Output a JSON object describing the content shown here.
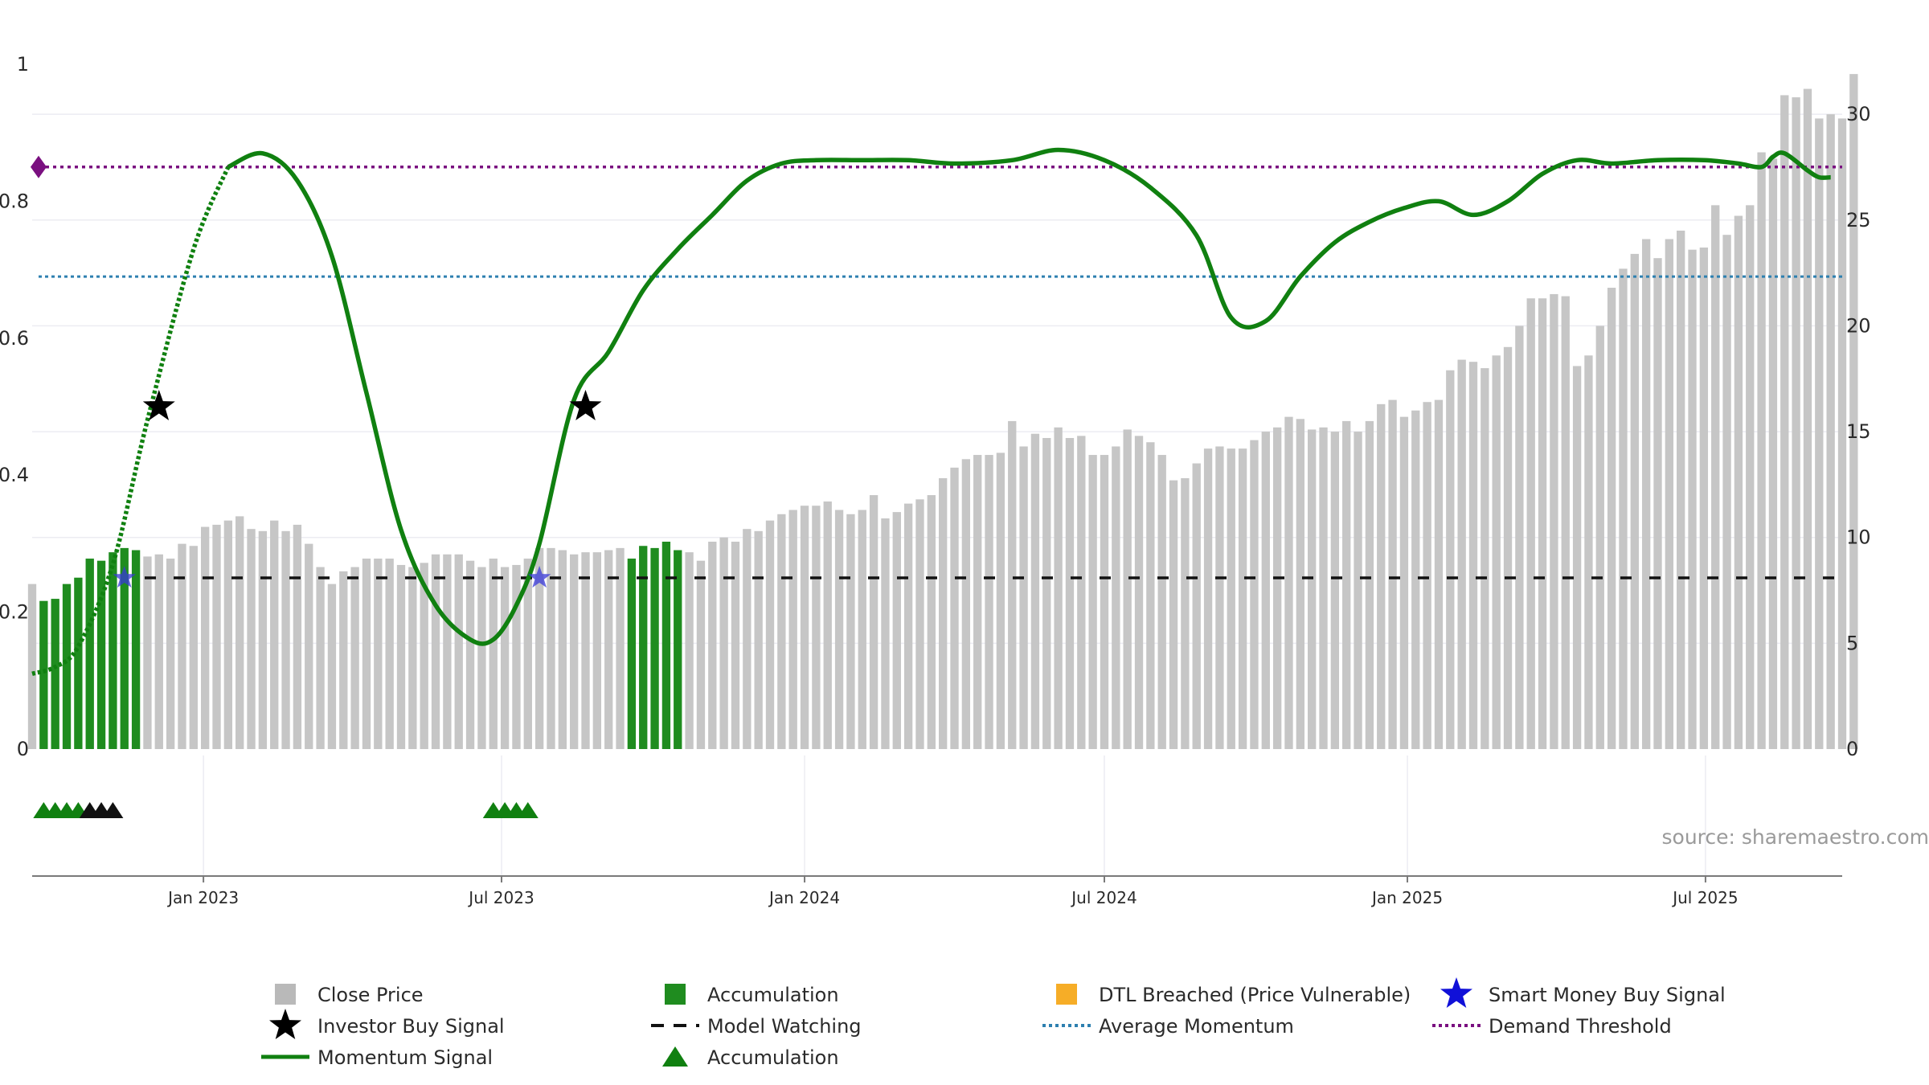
{
  "chart_data": {
    "type": "bar",
    "title": "",
    "source_note": "source: sharemaestro.com",
    "left_axis": {
      "ticks": [
        0,
        0.2,
        0.4,
        0.6,
        0.8,
        1
      ],
      "labels": [
        "0",
        "0.2",
        "0.4",
        "0.6",
        "0.8",
        "1"
      ],
      "range": [
        0,
        1
      ]
    },
    "right_axis": {
      "ticks": [
        0,
        5,
        10,
        15,
        20,
        25,
        30
      ],
      "labels": [
        "0",
        "5",
        "10",
        "15",
        "20",
        "25",
        "30"
      ],
      "range": [
        0,
        33.5
      ]
    },
    "x_axis": {
      "range": [
        "2022-09-19",
        "2025-09-22"
      ],
      "ticks": [
        {
          "date": "2023-01-01",
          "label": "Jan 2023"
        },
        {
          "date": "2023-07-01",
          "label": "Jul 2023"
        },
        {
          "date": "2024-01-01",
          "label": "Jan 2024"
        },
        {
          "date": "2024-07-01",
          "label": "Jul 2024"
        },
        {
          "date": "2025-01-01",
          "label": "Jan 2025"
        },
        {
          "date": "2025-07-01",
          "label": "Jul 2025"
        }
      ]
    },
    "bars": {
      "start_date": "2022-09-19",
      "interval_days": 7,
      "close_price": [
        7.8,
        7.0,
        7.1,
        7.8,
        8.1,
        9.0,
        8.9,
        9.3,
        9.5,
        9.4,
        9.1,
        9.2,
        9.0,
        9.7,
        9.6,
        10.5,
        10.6,
        10.8,
        11.0,
        10.4,
        10.3,
        10.8,
        10.3,
        10.6,
        9.7,
        8.6,
        7.8,
        8.4,
        8.6,
        9.0,
        9.0,
        9.0,
        8.7,
        8.6,
        8.8,
        9.2,
        9.2,
        9.2,
        8.9,
        8.6,
        9.0,
        8.6,
        8.7,
        9.0,
        9.5,
        9.5,
        9.4,
        9.2,
        9.3,
        9.3,
        9.4,
        9.5,
        9.0,
        9.6,
        9.5,
        9.8,
        9.4,
        9.3,
        8.9,
        9.8,
        10.0,
        9.8,
        10.4,
        10.3,
        10.8,
        11.1,
        11.3,
        11.5,
        11.5,
        11.7,
        11.3,
        11.1,
        11.3,
        12.0,
        10.9,
        11.2,
        11.6,
        11.8,
        12.0,
        12.8,
        13.3,
        13.7,
        13.9,
        13.9,
        14.0,
        15.5,
        14.3,
        14.9,
        14.7,
        15.2,
        14.7,
        14.8,
        13.9,
        13.9,
        14.3,
        15.1,
        14.8,
        14.5,
        13.9,
        12.7,
        12.8,
        13.5,
        14.2,
        14.3,
        14.2,
        14.2,
        14.6,
        15.0,
        15.2,
        15.7,
        15.6,
        15.1,
        15.2,
        15.0,
        15.5,
        15.0,
        15.5,
        16.3,
        16.5,
        15.7,
        16.0,
        16.4,
        16.5,
        17.9,
        18.4,
        18.3,
        18.0,
        18.6,
        19.0,
        20.0,
        21.3,
        21.3,
        21.5,
        21.4,
        18.1,
        18.6,
        20.0,
        21.8,
        22.7,
        23.4,
        24.1,
        23.2,
        24.1,
        24.5,
        23.6,
        23.7,
        25.7,
        24.3,
        25.2,
        25.7,
        28.2,
        27.9,
        30.9,
        30.8,
        31.2,
        29.8,
        30.0,
        29.8,
        31.9
      ],
      "accumulation_index": [
        1,
        2,
        3,
        4,
        5,
        6,
        7,
        8,
        9,
        52,
        53,
        54,
        55,
        56
      ],
      "dtl_breached_from_index": 191,
      "colors": {
        "close_price": "#c6c6c6",
        "accumulation": "#1f8c1f",
        "dtl_breached": "#f9cd82"
      }
    },
    "series": [
      {
        "name": "Momentum Signal",
        "color": "#108010",
        "dashed_start_index": 6,
        "dates": [
          "2022-09-19",
          "2022-10-03",
          "2022-10-17",
          "2022-11-07",
          "2022-11-28",
          "2022-12-26",
          "2023-01-16",
          "2023-02-06",
          "2023-02-27",
          "2023-03-20",
          "2023-04-10",
          "2023-05-01",
          "2023-05-22",
          "2023-06-12",
          "2023-06-26",
          "2023-07-10",
          "2023-07-24",
          "2023-08-14",
          "2023-09-04",
          "2023-09-25",
          "2023-10-16",
          "2023-11-06",
          "2023-11-27",
          "2023-12-18",
          "2024-01-08",
          "2024-02-05",
          "2024-03-04",
          "2024-04-01",
          "2024-05-06",
          "2024-06-03",
          "2024-07-01",
          "2024-07-29",
          "2024-08-26",
          "2024-09-16",
          "2024-10-07",
          "2024-10-28",
          "2024-11-18",
          "2024-12-09",
          "2024-12-30",
          "2025-01-20",
          "2025-02-10",
          "2025-03-03",
          "2025-03-24",
          "2025-04-14",
          "2025-05-05",
          "2025-06-02",
          "2025-06-30",
          "2025-07-21",
          "2025-08-04",
          "2025-08-11",
          "2025-08-18",
          "2025-09-01",
          "2025-09-08",
          "2025-09-15"
        ],
        "values": [
          0.11,
          0.12,
          0.15,
          0.27,
          0.48,
          0.73,
          0.85,
          0.87,
          0.83,
          0.72,
          0.52,
          0.32,
          0.21,
          0.16,
          0.16,
          0.21,
          0.3,
          0.51,
          0.58,
          0.67,
          0.73,
          0.78,
          0.83,
          0.855,
          0.86,
          0.86,
          0.86,
          0.855,
          0.86,
          0.875,
          0.86,
          0.82,
          0.75,
          0.63,
          0.625,
          0.69,
          0.74,
          0.77,
          0.79,
          0.8,
          0.78,
          0.8,
          0.84,
          0.86,
          0.855,
          0.86,
          0.86,
          0.855,
          0.85,
          0.865,
          0.87,
          0.845,
          0.835,
          0.835
        ]
      },
      {
        "name": "Average Momentum",
        "color": "#2e80b0",
        "value": 0.69
      },
      {
        "name": "Demand Threshold",
        "color": "#7a1080",
        "value": 0.85
      },
      {
        "name": "Model Watching",
        "color": "#111111",
        "value": 0.25
      }
    ],
    "markers": {
      "investor_buy": [
        {
          "date": "2022-12-05",
          "value": 0.5
        },
        {
          "date": "2023-08-21",
          "value": 0.5
        }
      ],
      "smart_money_buy": [
        {
          "date": "2022-11-14",
          "value": 0.25
        },
        {
          "date": "2023-07-24",
          "value": 0.25
        }
      ],
      "demand_threshold_marker": {
        "date": "2022-09-19",
        "value": 0.85
      },
      "accumulation_triangles": [
        {
          "date": "2022-09-26",
          "color": "#108010"
        },
        {
          "date": "2022-10-03",
          "color": "#108010"
        },
        {
          "date": "2022-10-10",
          "color": "#108010"
        },
        {
          "date": "2022-10-17",
          "color": "#108010"
        },
        {
          "date": "2022-10-24",
          "color": "#111111"
        },
        {
          "date": "2022-10-31",
          "color": "#111111"
        },
        {
          "date": "2022-11-07",
          "color": "#111111"
        },
        {
          "date": "2023-06-26",
          "color": "#108010"
        },
        {
          "date": "2023-07-03",
          "color": "#108010"
        },
        {
          "date": "2023-07-10",
          "color": "#108010"
        },
        {
          "date": "2023-07-17",
          "color": "#108010"
        }
      ]
    },
    "legend": {
      "position": "bottom",
      "items": [
        {
          "label": "Close Price",
          "symbol": "square",
          "color": "#b9b9b9"
        },
        {
          "label": "Accumulation",
          "symbol": "square",
          "color": "#1f8c1f"
        },
        {
          "label": "DTL Breached (Price Vulnerable)",
          "symbol": "square",
          "color": "#f6ad27"
        },
        {
          "label": "Smart Money Buy Signal",
          "symbol": "star",
          "color": "#1010d8"
        },
        {
          "label": "Investor Buy Signal",
          "symbol": "star",
          "color": "#000000"
        },
        {
          "label": "Model Watching",
          "symbol": "dash",
          "color": "#111111"
        },
        {
          "label": "Average Momentum",
          "symbol": "dotted",
          "color": "#2e80b0"
        },
        {
          "label": "Demand Threshold",
          "symbol": "dotted",
          "color": "#7a1080"
        },
        {
          "label": "Momentum Signal",
          "symbol": "line",
          "color": "#108010"
        },
        {
          "label": "Accumulation",
          "symbol": "triangle",
          "color": "#108010"
        }
      ]
    }
  }
}
